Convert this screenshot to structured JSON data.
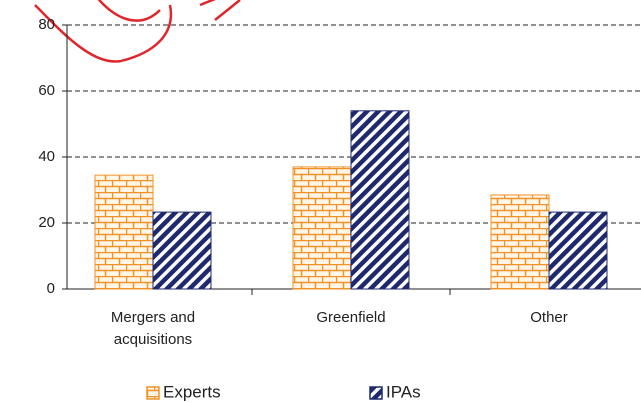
{
  "chart_data": {
    "type": "bar",
    "categories": [
      "Mergers and acquisitions",
      "Greenfield",
      "Other"
    ],
    "series": [
      {
        "name": "Experts",
        "color": "#f0922b",
        "values": [
          34.5,
          37,
          28.5
        ]
      },
      {
        "name": "IPAs",
        "color": "#1f2a6e",
        "values": [
          23.3,
          54,
          23.3
        ]
      }
    ],
    "ylim": [
      0,
      80
    ],
    "yticks": [
      0,
      20,
      40,
      60,
      80
    ],
    "grid": true,
    "legend": "bottom"
  }
}
